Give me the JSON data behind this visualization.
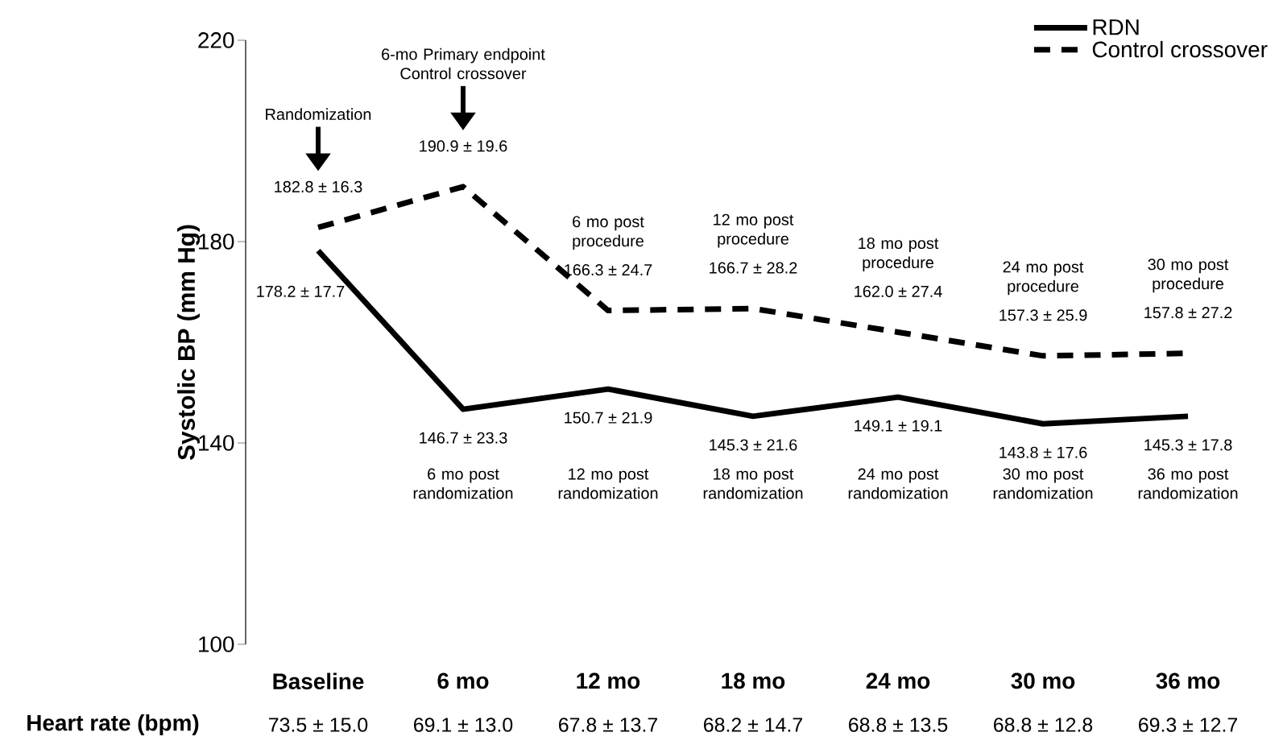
{
  "chart_data": {
    "type": "line",
    "ylabel": "Systolic BP (mm Hg)",
    "categories": [
      "Baseline",
      "6 mo",
      "12 mo",
      "18 mo",
      "24 mo",
      "30 mo",
      "36 mo"
    ],
    "series": [
      {
        "name": "RDN",
        "color": "#000000",
        "line_style": "solid",
        "values": [
          178.2,
          146.7,
          150.7,
          145.3,
          149.1,
          143.8,
          145.3
        ],
        "value_labels": [
          "178.2 ± 17.7",
          "146.7 ± 23.3",
          "150.7 ± 21.9",
          "145.3 ± 21.6",
          "149.1 ± 19.1",
          "143.8 ± 17.6",
          "145.3 ± 17.8"
        ]
      },
      {
        "name": "Control crossover",
        "color": "#000000",
        "line_style": "dashed",
        "values": [
          182.8,
          190.9,
          166.3,
          166.7,
          162.0,
          157.3,
          157.8
        ],
        "value_labels": [
          "182.8 ± 16.3",
          "190.9 ± 19.6",
          "166.3 ± 24.7",
          "166.7 ± 28.2",
          "162.0 ± 27.4",
          "157.3 ± 25.9",
          "157.8 ± 27.2"
        ]
      }
    ],
    "ylim": [
      100,
      220
    ],
    "yticks": [
      100,
      140,
      180,
      220
    ],
    "legend": "top right",
    "annotations": [
      "Randomization",
      "6-mo Primary endpoint Control crossover",
      "6 mo post procedure",
      "12 mo post procedure",
      "18 mo post procedure",
      "24 mo post procedure",
      "30 mo post procedure",
      "6 mo post randomization",
      "12 mo post randomization",
      "18 mo post randomization",
      "24 mo post randomization",
      "30 mo post randomization",
      "36 mo post randomization",
      "Heart rate (bpm)",
      "73.5 ± 15.0",
      "69.1 ± 13.0",
      "67.8 ± 13.7",
      "68.2 ± 14.7",
      "68.8 ± 13.5",
      "68.8 ± 12.8",
      "69.3 ± 12.7"
    ]
  }
}
